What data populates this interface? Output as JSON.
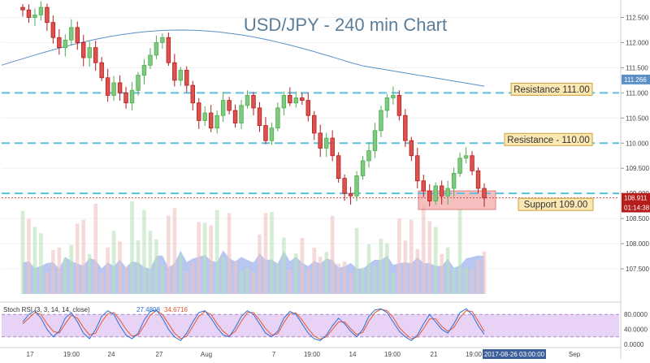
{
  "title": "USD/JPY - 240 min Chart",
  "colors": {
    "bull": "#4caf50",
    "bear": "#b71c1c",
    "candle_body_bull": "#7fc97f",
    "candle_body_bear": "#d9534f",
    "ma": "#5b8fc7",
    "resistance_line": "#5bc0de",
    "support_box": "#f4a6a6",
    "annotation_fill": "#fbe7b2",
    "annotation_border": "#c9a23a",
    "stoch_bg": "#e8d3f7",
    "stoch_k": "#2b6fd6",
    "stoch_d": "#e8552c",
    "volume_band": "#9fb4ee"
  },
  "chart_data": {
    "type": "candlestick",
    "title": "USD/JPY - 240 min Chart",
    "ylim": [
      107.0,
      112.75
    ],
    "y_ticks": [
      "112.500",
      "112.000",
      "111.500",
      "111.000",
      "110.500",
      "110.000",
      "109.500",
      "109.000",
      "108.500",
      "108.000",
      "107.500"
    ],
    "x_ticks": [
      "17",
      "19:00",
      "24",
      "27",
      "Aug",
      "7",
      "19:00",
      "14",
      "19:00",
      "21",
      "19:00",
      "Sep"
    ],
    "price_labels": [
      {
        "label": "111.266",
        "value": 111.266,
        "color": "#5b8fc7"
      },
      {
        "label": "108.911",
        "value": 108.911,
        "color": "#b71c1c"
      },
      {
        "label": "01:14:38",
        "value": 108.72,
        "color": "#b71c1c"
      }
    ],
    "annotations": [
      {
        "text": "Resistance 111.00",
        "level": 111.0
      },
      {
        "text": "Resistance - 110.00",
        "level": 110.0
      },
      {
        "text": "Support 109.00",
        "level": 109.0
      }
    ],
    "support_zone": {
      "low": 108.68,
      "high": 109.05
    },
    "closes": [
      112.65,
      112.5,
      112.55,
      112.7,
      112.4,
      112.1,
      111.9,
      112.05,
      112.3,
      112.0,
      111.7,
      111.9,
      111.6,
      111.3,
      110.95,
      111.2,
      111.0,
      110.8,
      111.05,
      111.35,
      111.55,
      111.75,
      112.0,
      112.1,
      111.6,
      111.25,
      111.45,
      111.15,
      110.8,
      110.45,
      110.6,
      110.3,
      110.55,
      110.85,
      110.65,
      110.4,
      110.75,
      110.95,
      110.7,
      110.35,
      110.05,
      110.3,
      110.7,
      110.95,
      110.8,
      110.9,
      110.85,
      110.55,
      110.2,
      109.9,
      110.1,
      109.75,
      109.3,
      109.0,
      108.95,
      109.35,
      109.65,
      109.85,
      110.25,
      110.65,
      110.9,
      110.95,
      110.55,
      110.05,
      109.75,
      109.25,
      109.05,
      108.85,
      109.15,
      108.95,
      109.1,
      109.4,
      109.7,
      109.75,
      109.45,
      109.1,
      108.91
    ],
    "stoch_rsi": {
      "label": "Stoch RSI (3, 3, 14, 14, close)",
      "k_value": "27.4808",
      "d_value": "34.6716",
      "ylim": [
        0,
        100
      ],
      "ticks": [
        "80.0000",
        "40.0000",
        "0.0000"
      ],
      "k": [
        60,
        80,
        90,
        70,
        40,
        20,
        35,
        70,
        85,
        60,
        30,
        15,
        40,
        75,
        90,
        80,
        50,
        25,
        15,
        30,
        65,
        88,
        92,
        70,
        40,
        20,
        10,
        30,
        60,
        85,
        90,
        70,
        45,
        25,
        20,
        45,
        75,
        90,
        80,
        55,
        30,
        20,
        35,
        70,
        88,
        80,
        55,
        30,
        15,
        10,
        25,
        50,
        70,
        55,
        35,
        20,
        40,
        75,
        92,
        95,
        85,
        60,
        35,
        20,
        10,
        25,
        55,
        80,
        60,
        40,
        30,
        55,
        85,
        95,
        80,
        50,
        27
      ],
      "d": [
        55,
        70,
        85,
        80,
        55,
        35,
        30,
        55,
        78,
        70,
        45,
        25,
        30,
        60,
        82,
        85,
        65,
        40,
        22,
        25,
        50,
        78,
        90,
        80,
        55,
        30,
        15,
        22,
        48,
        75,
        88,
        80,
        55,
        35,
        22,
        35,
        62,
        85,
        85,
        65,
        42,
        25,
        28,
        58,
        82,
        84,
        65,
        42,
        22,
        14,
        20,
        40,
        60,
        60,
        42,
        26,
        32,
        62,
        85,
        94,
        90,
        72,
        45,
        28,
        15,
        20,
        42,
        68,
        68,
        48,
        35,
        45,
        72,
        90,
        88,
        62,
        35
      ]
    },
    "time_marker": "2017-08-26 03:00:00"
  }
}
